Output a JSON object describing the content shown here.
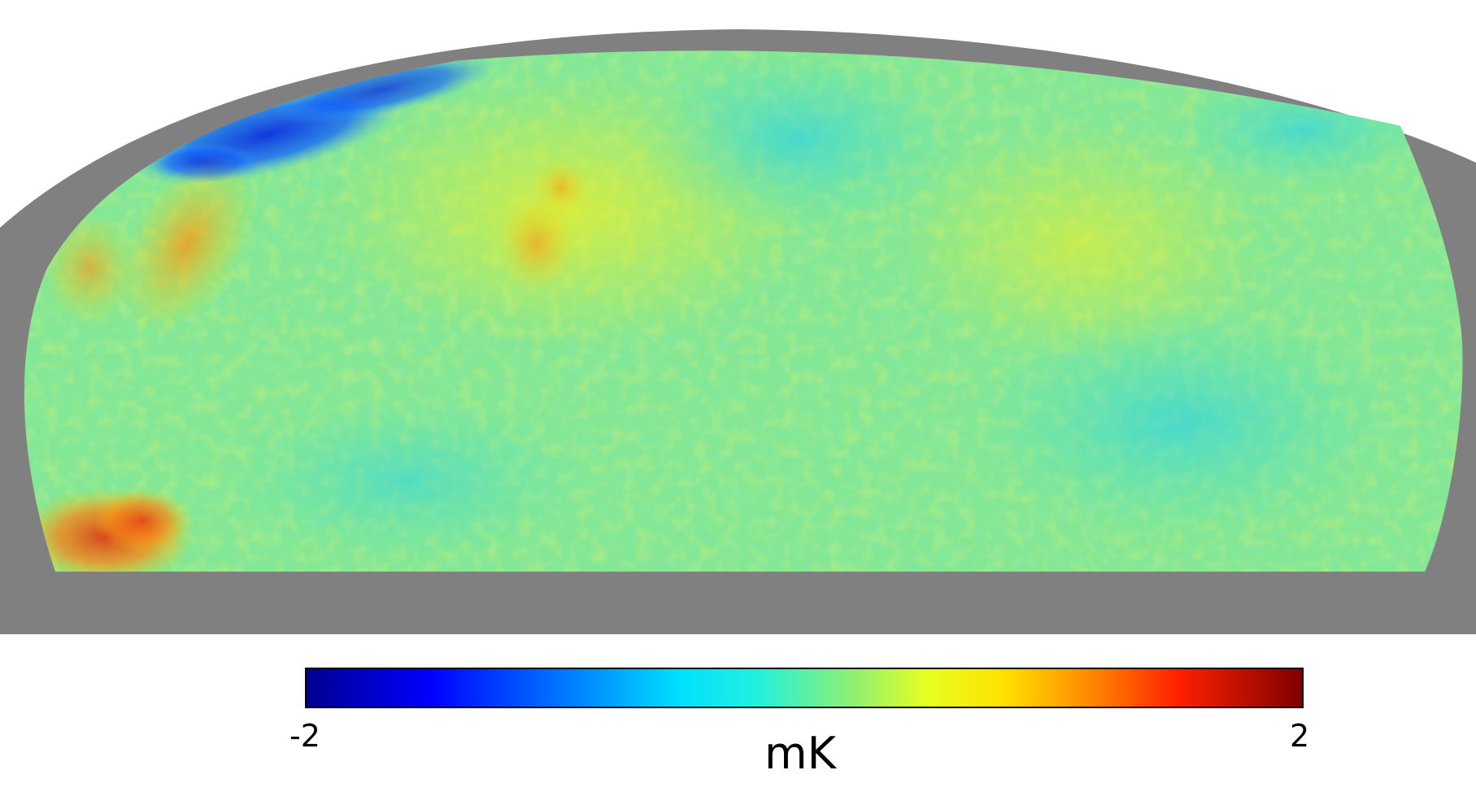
{
  "map": {
    "type": "partial-sky temperature map (Mollweide projection, masked region in grey)",
    "mask_color": "#808080",
    "background_color": "#ffffff"
  },
  "colorbar": {
    "min_label": "-2",
    "max_label": "2",
    "unit_label": "mK",
    "min_value": -2,
    "max_value": 2,
    "colormap": "jet",
    "colors": [
      "#00008f",
      "#0000ff",
      "#0080ff",
      "#00ffff",
      "#80ff80",
      "#ffff00",
      "#ff8000",
      "#ff0000",
      "#800000"
    ]
  }
}
